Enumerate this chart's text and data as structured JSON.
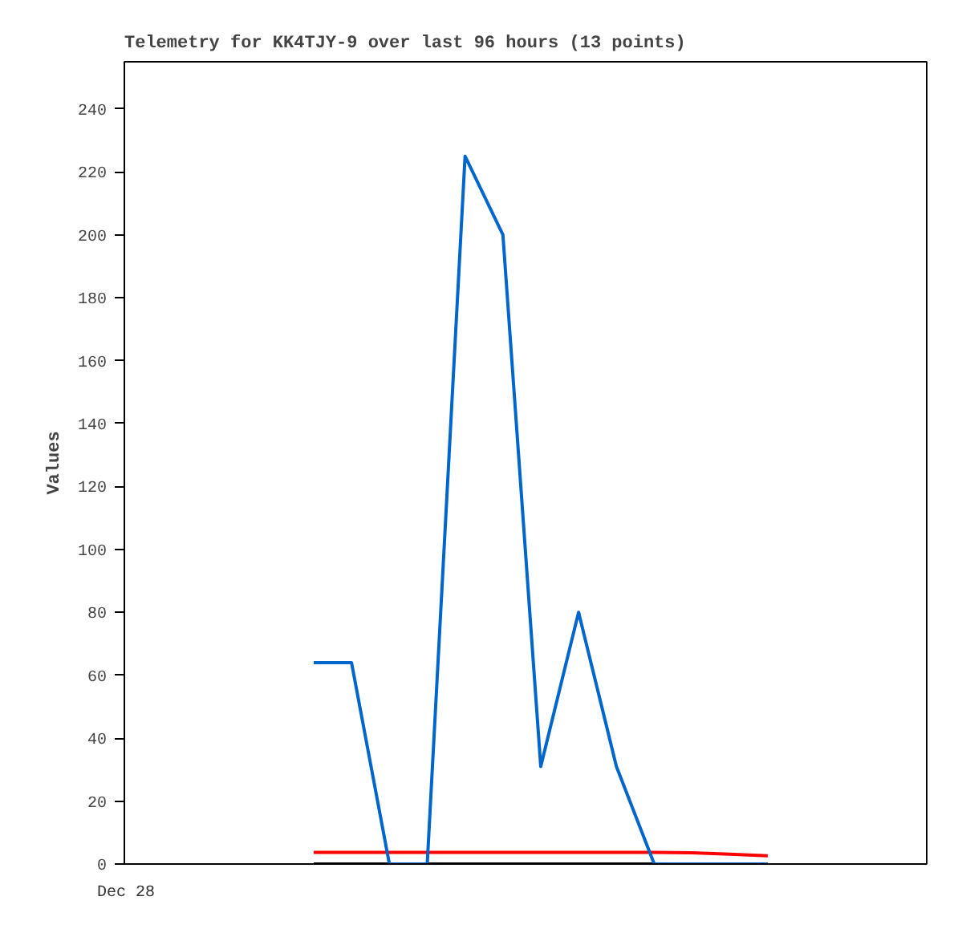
{
  "chart_data": {
    "type": "line",
    "title": "Telemetry for KK4TJY-9 over last 96 hours (13 points)",
    "ylabel": "Values",
    "categories": [
      null,
      null,
      null,
      null,
      null,
      null,
      null,
      null,
      null,
      null,
      null,
      null,
      null
    ],
    "annotations": [
      "Dec 28"
    ],
    "ylim": [
      0,
      255
    ],
    "yticks": [
      0,
      20,
      40,
      60,
      80,
      100,
      120,
      140,
      160,
      180,
      200,
      220,
      240
    ],
    "grid": false,
    "marker": "none",
    "line_style": "solid",
    "series": [
      {
        "color": "#000000",
        "values": [
          0,
          0,
          0,
          0,
          0,
          0,
          0,
          0,
          0,
          0,
          0,
          0,
          0
        ]
      },
      {
        "color": "#ff0000",
        "values": [
          3.7,
          3.7,
          3.7,
          3.7,
          3.7,
          3.7,
          3.7,
          3.7,
          3.7,
          3.7,
          3.6,
          3.1,
          2.6
        ]
      },
      {
        "color": "#0066cc",
        "values": [
          64,
          64,
          0,
          0,
          225,
          200,
          31,
          80,
          31,
          0,
          0,
          0,
          0
        ]
      }
    ]
  }
}
